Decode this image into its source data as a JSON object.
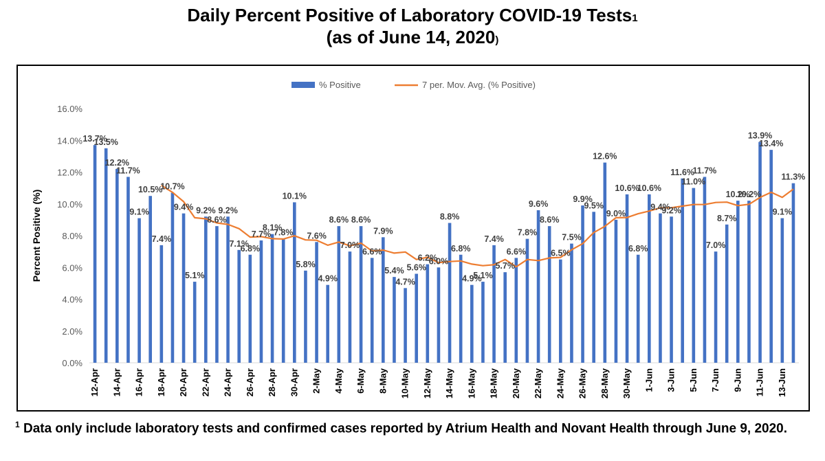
{
  "header": {
    "title_line1": "Daily Percent Positive of Laboratory COVID-19 Tests",
    "title_superscript": "1",
    "title_line2_open": "(as of June 14, 2020",
    "title_line2_close": ")"
  },
  "footnote": {
    "marker": "1",
    "text": " Data only include laboratory tests and confirmed cases reported by Atrium Health and Novant Health through June 9, 2020."
  },
  "colors": {
    "bar": "#4472c4",
    "line": "#ed7d31",
    "axis_text": "#595959",
    "label_text": "#404040",
    "grid": "#d9d9d9"
  },
  "chart_data": {
    "type": "bar",
    "title": "Daily Percent Positive of Laboratory COVID-19 Tests",
    "ylabel": "Percent Positive (%)",
    "xlabel": "",
    "ylim": [
      0,
      16
    ],
    "yticks": [
      "0.0%",
      "2.0%",
      "4.0%",
      "6.0%",
      "8.0%",
      "10.0%",
      "12.0%",
      "14.0%",
      "16.0%"
    ],
    "grid": false,
    "legend_position": "top",
    "categories": [
      "12-Apr",
      "13-Apr",
      "14-Apr",
      "15-Apr",
      "16-Apr",
      "17-Apr",
      "18-Apr",
      "19-Apr",
      "20-Apr",
      "21-Apr",
      "22-Apr",
      "23-Apr",
      "24-Apr",
      "25-Apr",
      "26-Apr",
      "27-Apr",
      "28-Apr",
      "29-Apr",
      "30-Apr",
      "1-May",
      "2-May",
      "3-May",
      "4-May",
      "5-May",
      "6-May",
      "7-May",
      "8-May",
      "9-May",
      "10-May",
      "11-May",
      "12-May",
      "13-May",
      "14-May",
      "15-May",
      "16-May",
      "17-May",
      "18-May",
      "19-May",
      "20-May",
      "21-May",
      "22-May",
      "23-May",
      "24-May",
      "25-May",
      "26-May",
      "27-May",
      "28-May",
      "29-May",
      "30-May",
      "31-May",
      "1-Jun",
      "2-Jun",
      "3-Jun",
      "4-Jun",
      "5-Jun",
      "6-Jun",
      "7-Jun",
      "8-Jun",
      "9-Jun",
      "10-Jun",
      "11-Jun",
      "12-Jun",
      "13-Jun",
      "14-Jun"
    ],
    "tick_labels": [
      "12-Apr",
      "14-Apr",
      "16-Apr",
      "18-Apr",
      "20-Apr",
      "22-Apr",
      "24-Apr",
      "26-Apr",
      "28-Apr",
      "30-Apr",
      "2-May",
      "4-May",
      "6-May",
      "8-May",
      "10-May",
      "12-May",
      "14-May",
      "16-May",
      "18-May",
      "20-May",
      "22-May",
      "24-May",
      "26-May",
      "28-May",
      "30-May",
      "1-Jun",
      "3-Jun",
      "5-Jun",
      "7-Jun",
      "9-Jun",
      "11-Jun",
      "13-Jun"
    ],
    "series": [
      {
        "name": "% Positive",
        "type": "bar",
        "values": [
          13.7,
          13.5,
          12.2,
          11.7,
          9.1,
          10.5,
          7.4,
          10.7,
          9.4,
          5.1,
          9.2,
          8.6,
          9.2,
          7.1,
          6.8,
          7.7,
          8.1,
          7.8,
          10.1,
          5.8,
          7.6,
          4.9,
          8.6,
          7.0,
          8.6,
          6.6,
          7.9,
          5.4,
          4.7,
          5.6,
          6.2,
          6.0,
          8.8,
          6.8,
          4.9,
          5.1,
          7.4,
          5.7,
          6.6,
          7.8,
          9.6,
          8.6,
          6.5,
          7.5,
          9.9,
          9.5,
          12.6,
          9.0,
          10.6,
          6.8,
          10.6,
          9.4,
          9.2,
          11.6,
          11.0,
          11.7,
          7.0,
          8.7,
          10.2,
          10.2,
          13.9,
          13.4,
          9.1,
          11.3
        ],
        "data_labels": [
          "13.7%",
          "13.5%",
          "12.2%",
          "11.7%",
          "9.1%",
          "10.5%",
          "7.4%",
          "10.7%",
          "9.4%",
          "5.1%",
          "9.2%",
          "8.6%",
          "9.2%",
          "7.1%",
          "6.8%",
          "7.7%",
          "8.1%",
          "7.8%",
          "10.1%",
          "5.8%",
          "7.6%",
          "4.9%",
          "8.6%",
          "7.0%",
          "8.6%",
          "6.6%",
          "7.9%",
          "5.4%",
          "4.7%",
          "5.6%",
          "6.2%",
          "6.0%",
          "8.8%",
          "6.8%",
          "4.9%",
          "5.1%",
          "7.4%",
          "5.7%",
          "6.6%",
          "7.8%",
          "9.6%",
          "8.6%",
          "6.5%",
          "7.5%",
          "9.9%",
          "9.5%",
          "12.6%",
          "9.0%",
          "10.6%",
          "6.8%",
          "10.6%",
          "9.4%",
          "9.2%",
          "11.6%",
          "11.0%",
          "11.7%",
          "7.0%",
          "8.7%",
          "10.2%",
          "10.2%",
          "13.9%",
          "13.4%",
          "9.1%",
          "11.3%"
        ]
      },
      {
        "name": "7 per. Mov. Avg. (% Positive)",
        "type": "line",
        "values": [
          null,
          null,
          null,
          null,
          null,
          null,
          11.16,
          10.73,
          10.14,
          9.13,
          9.06,
          8.8,
          8.71,
          8.44,
          7.91,
          7.94,
          7.81,
          7.79,
          7.99,
          7.73,
          7.71,
          7.4,
          7.6,
          7.36,
          7.53,
          7.03,
          7.09,
          6.9,
          6.97,
          6.5,
          6.64,
          6.3,
          6.37,
          6.41,
          6.21,
          6.11,
          6.17,
          6.5,
          6.04,
          6.5,
          6.43,
          6.6,
          6.63,
          7.11,
          7.5,
          8.2,
          8.59,
          9.13,
          9.14,
          9.38,
          9.55,
          9.75,
          9.76,
          9.86,
          9.96,
          9.96,
          10.09,
          10.11,
          9.89,
          9.97,
          10.41,
          10.73,
          10.41,
          10.93
        ]
      }
    ]
  }
}
